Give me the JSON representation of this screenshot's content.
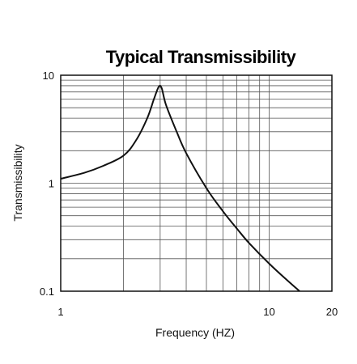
{
  "chart_data": {
    "type": "line",
    "title": "Typical Transmissibility",
    "xlabel": "Frequency (HZ)",
    "ylabel": "Transmissibility",
    "x_scale": "log",
    "y_scale": "log",
    "xlim": [
      1,
      20
    ],
    "ylim": [
      0.1,
      10
    ],
    "grid": true,
    "x_ticks": [
      {
        "value": 1,
        "label": "1"
      },
      {
        "value": 10,
        "label": "10"
      },
      {
        "value": 20,
        "label": "20"
      }
    ],
    "y_ticks": [
      {
        "value": 0.1,
        "label": "0.1"
      },
      {
        "value": 1,
        "label": "1"
      },
      {
        "value": 10,
        "label": "10"
      }
    ],
    "series": [
      {
        "x": [
          1.0,
          1.3,
          1.6,
          2.0,
          2.3,
          2.6,
          2.8,
          2.95,
          3.05,
          3.2,
          3.6,
          4.0,
          5.0,
          6.0,
          7.0,
          8.0,
          10.0,
          12.0,
          14.0
        ],
        "y": [
          1.1,
          1.25,
          1.45,
          1.8,
          2.5,
          4.0,
          6.0,
          7.8,
          7.6,
          5.3,
          3.0,
          1.9,
          0.9,
          0.55,
          0.38,
          0.28,
          0.18,
          0.13,
          0.1
        ]
      }
    ]
  },
  "colors": {
    "line": "#111111",
    "grid": "#555555",
    "frame": "#111111"
  }
}
